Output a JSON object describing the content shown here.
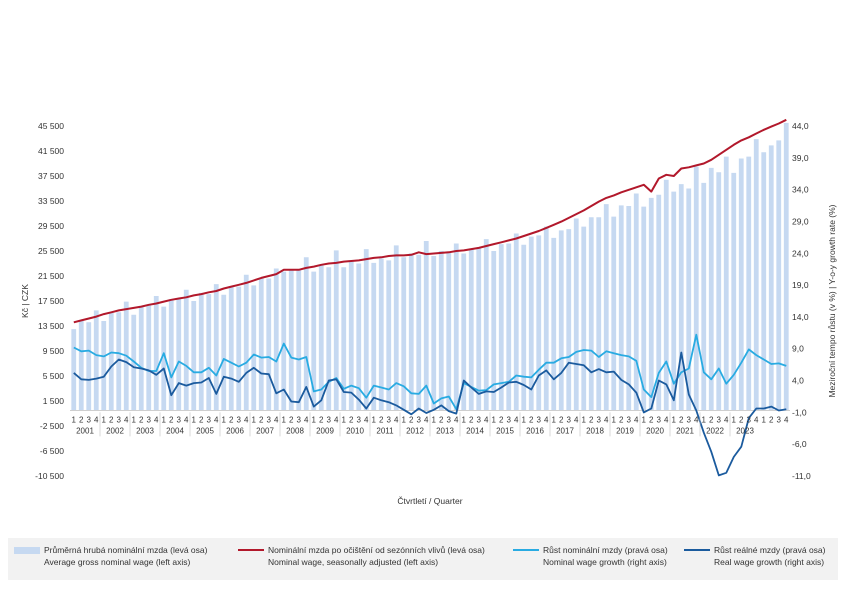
{
  "chart_data": {
    "type": "bar+line",
    "title": "",
    "xlabel": "Čtvrtletí / Quarter",
    "ylabel_left": "Kč | CZK",
    "ylabel_right": "Meziroční tempo růstu (v %) | Y-o-y growth rate (%)",
    "ylim_left": [
      -10500,
      45500
    ],
    "ylim_right": [
      -11.0,
      44.0
    ],
    "yticks_left": [
      "45 500",
      "41 500",
      "37 500",
      "33 500",
      "29 500",
      "25 500",
      "21 500",
      "17 500",
      "13 500",
      "9 500",
      "5 500",
      "1 500",
      "-2 500",
      "-6 500",
      "-10 500"
    ],
    "yticks_right": [
      "44,0",
      "39,0",
      "34,0",
      "29,0",
      "24,0",
      "19,0",
      "14,0",
      "9,0",
      "4,0",
      "-1,0",
      "-6,0",
      "-11,0"
    ],
    "years": [
      "2001",
      "2002",
      "2003",
      "2004",
      "2005",
      "2006",
      "2007",
      "2008",
      "2009",
      "2010",
      "2011",
      "2012",
      "2013",
      "2014",
      "2015",
      "2016",
      "2017",
      "2018",
      "2019",
      "2020",
      "2021",
      "2022",
      "2023"
    ],
    "quarters": [
      "1",
      "2",
      "3",
      "4"
    ],
    "series": [
      {
        "name": "Průměrná hrubá nominální mzda (levá osa)",
        "kind": "bar",
        "axis": "left",
        "color": "#c6d9f1",
        "values": [
          13000,
          14400,
          14100,
          16000,
          14300,
          15600,
          15700,
          17400,
          15300,
          16700,
          16800,
          18300,
          16600,
          17800,
          17800,
          19300,
          17500,
          18800,
          18600,
          20200,
          18500,
          19900,
          19800,
          21700,
          20000,
          21200,
          21100,
          22700,
          22200,
          22400,
          22400,
          24500,
          22200,
          23200,
          22900,
          25600,
          22900,
          23800,
          23500,
          25800,
          23600,
          24300,
          24000,
          26400,
          24500,
          25100,
          24900,
          27100,
          24700,
          25500,
          25400,
          26700,
          25100,
          25800,
          25900,
          27400,
          25500,
          26600,
          26700,
          28300,
          26500,
          27800,
          28000,
          29400,
          27600,
          28800,
          29000,
          30700,
          29400,
          30900,
          30900,
          33000,
          31000,
          32800,
          32700,
          34700,
          32600,
          34000,
          34500,
          36900,
          35000,
          36200,
          35500,
          39000,
          36400,
          38800,
          38100,
          40600,
          38000,
          40300,
          40600,
          43400,
          41300,
          42400,
          43200,
          46000
        ]
      },
      {
        "name": "Nominální mzda po očištění od sezónních vlivů (levá osa)",
        "kind": "line",
        "axis": "left",
        "color": "#b2182b",
        "values": [
          14100,
          14400,
          14700,
          15000,
          15400,
          15700,
          16000,
          16200,
          16400,
          16600,
          16900,
          17100,
          17400,
          17700,
          17900,
          18100,
          18400,
          18600,
          18900,
          19100,
          19500,
          19800,
          20100,
          20400,
          20800,
          21200,
          21500,
          21800,
          22500,
          22500,
          22500,
          22800,
          23000,
          23300,
          23500,
          23600,
          23800,
          23900,
          24000,
          24200,
          24400,
          24500,
          24700,
          24800,
          24800,
          24900,
          25300,
          25000,
          25100,
          25200,
          25300,
          25500,
          25600,
          25800,
          26000,
          26300,
          26600,
          26900,
          27200,
          27500,
          27900,
          28300,
          28700,
          29200,
          29700,
          30200,
          30800,
          31400,
          32000,
          32700,
          33400,
          34000,
          34400,
          34900,
          35300,
          35700,
          36100,
          35000,
          37100,
          37700,
          37500,
          38700,
          38900,
          39200,
          39500,
          40100,
          40900,
          41700,
          42500,
          43200,
          43700,
          44300,
          44900,
          45400,
          45900,
          46500
        ]
      },
      {
        "name": "Růst nominální mzdy (pravá osa)",
        "kind": "line",
        "axis": "right",
        "color": "#29abe2",
        "values": [
          9.2,
          8.6,
          8.7,
          8.0,
          7.8,
          8.4,
          8.3,
          7.9,
          7.0,
          6.0,
          5.5,
          5.5,
          8.3,
          4.5,
          7.0,
          6.3,
          5.3,
          5.3,
          6.0,
          4.8,
          7.4,
          6.8,
          6.2,
          6.8,
          8.1,
          7.6,
          7.7,
          7.0,
          9.8,
          7.6,
          7.3,
          7.7,
          2.3,
          2.6,
          3.8,
          4.4,
          2.7,
          3.2,
          2.8,
          1.3,
          3.2,
          2.9,
          2.6,
          3.6,
          3.1,
          2.0,
          1.9,
          3.2,
          0.4,
          1.2,
          1.5,
          -0.5,
          3.6,
          3.0,
          2.4,
          2.5,
          3.4,
          3.6,
          3.8,
          4.8,
          4.6,
          4.5,
          5.7,
          6.8,
          6.8,
          7.5,
          7.7,
          8.5,
          8.8,
          8.7,
          7.7,
          8.6,
          8.3,
          8.0,
          7.8,
          7.1,
          2.6,
          1.4,
          5.2,
          7.0,
          3.5,
          5.3,
          5.9,
          11.2,
          5.3,
          4.2,
          5.9,
          3.5,
          4.9,
          6.8,
          8.9,
          8.0,
          7.3,
          6.6,
          6.7,
          6.3
        ]
      },
      {
        "name": "Růst reálné mzdy (pravá osa)",
        "kind": "line",
        "axis": "right",
        "color": "#1b5b9e",
        "values": [
          5.2,
          4.2,
          4.1,
          4.3,
          4.6,
          6.2,
          7.3,
          6.9,
          6.1,
          5.9,
          5.6,
          4.9,
          5.9,
          1.7,
          3.6,
          3.2,
          3.6,
          3.7,
          4.4,
          1.9,
          4.6,
          4.3,
          3.8,
          5.2,
          6.0,
          5.1,
          5.0,
          2.0,
          2.6,
          0.7,
          0.6,
          3.0,
          -0.1,
          0.9,
          4.0,
          4.2,
          2.2,
          2.1,
          1.0,
          -0.4,
          1.3,
          0.9,
          0.6,
          0.1,
          -0.6,
          -1.3,
          -0.4,
          -1.1,
          -0.6,
          0.1,
          -0.8,
          -1.2,
          4.0,
          2.9,
          1.9,
          2.3,
          2.2,
          2.9,
          3.7,
          3.8,
          3.3,
          2.6,
          4.8,
          5.6,
          4.2,
          5.2,
          6.8,
          6.6,
          6.4,
          5.3,
          5.8,
          5.3,
          5.4,
          4.1,
          3.4,
          2.1,
          -1.0,
          -0.4,
          4.0,
          3.4,
          0.9,
          8.4,
          1.8,
          -0.7,
          -4.2,
          -7.2,
          -10.9,
          -10.5,
          -8.0,
          -6.4,
          -1.9,
          -0.4,
          -0.4,
          -0.1,
          -0.7,
          -0.5
        ]
      }
    ],
    "legend": [
      {
        "cz": "Průměrná hrubá nominální mzda (levá osa)",
        "en": "Average gross nominal wage (left axis)",
        "type": "bar",
        "color": "#c6d9f1"
      },
      {
        "cz": "Nominální mzda po očištění od sezónních vlivů (levá osa)",
        "en": "Nominal wage, seasonally adjusted (left axis)",
        "type": "line",
        "color": "#b2182b"
      },
      {
        "cz": "Růst nominální mzdy (pravá osa)",
        "en": "Nominal wage growth (right axis)",
        "type": "line",
        "color": "#29abe2"
      },
      {
        "cz": "Růst reálné mzdy (pravá osa)",
        "en": "Real wage growth (right axis)",
        "type": "line",
        "color": "#1b5b9e"
      }
    ],
    "grid": false,
    "legend_position": "bottom"
  }
}
